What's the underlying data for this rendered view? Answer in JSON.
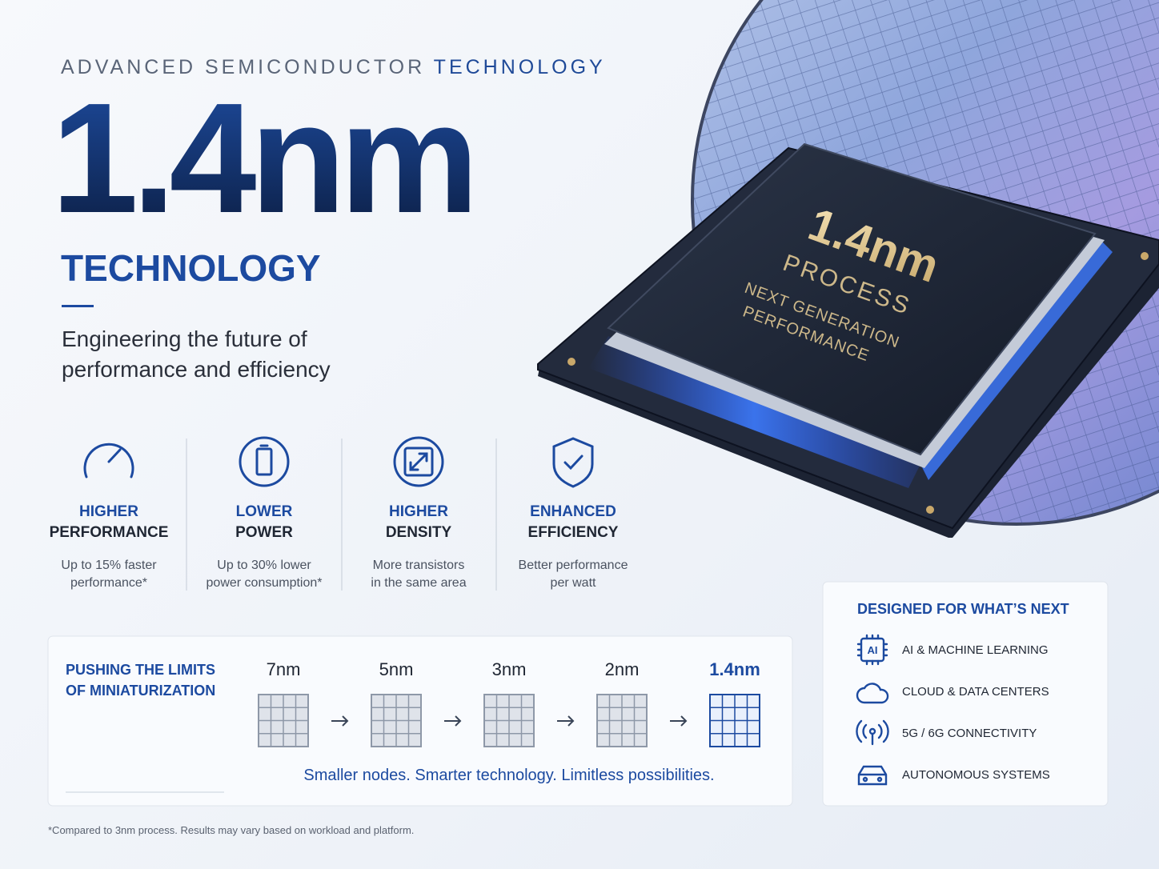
{
  "header": {
    "eyebrow_gray": "ADVANCED SEMICONDUCTOR",
    "eyebrow_blue": "TECHNOLOGY",
    "headline": "1.4nm",
    "subheadline": "TECHNOLOGY",
    "tagline_lines": [
      "Engineering the future of",
      "performance and efficiency"
    ]
  },
  "chip": {
    "title": "1.4nm",
    "line_1": "PROCESS",
    "line_2": "NEXT GENERATION",
    "line_3": "PERFORMANCE"
  },
  "features": [
    {
      "title_lines": [
        "HIGHER",
        "PERFORMANCE"
      ],
      "description_lines": [
        "Up to 15% faster",
        "performance*"
      ]
    },
    {
      "title_lines": [
        "LOWER",
        "POWER"
      ],
      "description_lines": [
        "Up to 30% lower",
        "power consumption*"
      ]
    },
    {
      "title_lines": [
        "HIGHER",
        "DENSITY"
      ],
      "description_lines": [
        "More transistors",
        "in the same area"
      ]
    },
    {
      "title_lines": [
        "ENHANCED",
        "EFFICIENCY"
      ],
      "description_lines": [
        "Better performance",
        "per watt"
      ]
    }
  ],
  "roadmap": {
    "title_lines": [
      "PUSHING THE LIMITS",
      "OF MINIATURIZATION"
    ],
    "nodes": [
      "7nm",
      "5nm",
      "3nm",
      "2nm",
      "1.4nm"
    ],
    "caption": "Smaller nodes. Smarter technology. Limitless possibilities."
  },
  "applications": {
    "title": "DESIGNED FOR WHAT’S NEXT",
    "ai_icon_text": "AI",
    "items": [
      "AI & MACHINE LEARNING",
      "CLOUD & DATA CENTERS",
      "5G / 6G CONNECTIVITY",
      "AUTONOMOUS SYSTEMS"
    ]
  },
  "footnote": "*Compared to 3nm process. Results may vary based on workload and platform."
}
